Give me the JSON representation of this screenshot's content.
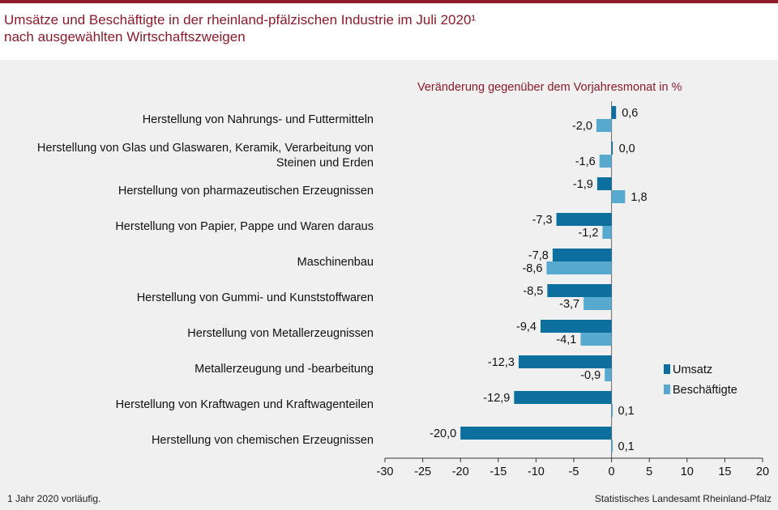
{
  "header": {
    "title_line1": "Umsätze und Beschäftigte in der rheinland-pfälzischen Industrie im Juli 2020¹",
    "title_line2": "nach ausgewählten Wirtschaftszweigen"
  },
  "footnote": "1 Jahr  2020 vorläufig.",
  "source": "Statistisches Landesamt Rheinland-Pfalz",
  "colors": {
    "umsatz": "#0d6f9e",
    "beschaeftigte": "#58a9cf",
    "title": "#8b1a2b"
  },
  "chart_data": {
    "type": "bar",
    "orientation": "horizontal",
    "subtitle": "Veränderung  gegenüber  dem Vorjahresmonat  in %",
    "categories": [
      [
        "Herstellung von Nahrungs- und Futtermitteln"
      ],
      [
        "Herstellung von Glas und Glaswaren, Keramik, Verarbeitung von",
        "Steinen und Erden"
      ],
      [
        "Herstellung von pharmazeutischen Erzeugnissen"
      ],
      [
        "Herstellung von Papier, Pappe und Waren daraus"
      ],
      [
        "Maschinenbau"
      ],
      [
        "Herstellung von Gummi- und Kunststoffwaren"
      ],
      [
        "Herstellung von Metallerzeugnissen"
      ],
      [
        "Metallerzeugung und -bearbeitung"
      ],
      [
        "Herstellung von Kraftwagen und Kraftwagenteilen"
      ],
      [
        "Herstellung von chemischen Erzeugnissen"
      ]
    ],
    "series": [
      {
        "name": "Umsatz",
        "values": [
          0.6,
          0.0,
          -1.9,
          -7.3,
          -7.8,
          -8.5,
          -9.4,
          -12.3,
          -12.9,
          -20.0
        ],
        "labels": [
          "0,6",
          "0,0",
          "-1,9",
          "-7,3",
          "-7,8",
          "-8,5",
          "-9,4",
          "-12,3",
          "-12,9",
          "-20,0"
        ]
      },
      {
        "name": "Beschäftigte",
        "values": [
          -2.0,
          -1.6,
          1.8,
          -1.2,
          -8.6,
          -3.7,
          -4.1,
          -0.9,
          0.1,
          0.1
        ],
        "labels": [
          "-2,0",
          "-1,6",
          "1,8",
          "-1,2",
          "-8,6",
          "-3,7",
          "-4,1",
          "-0,9",
          "0,1",
          "0,1"
        ]
      }
    ],
    "xlim": [
      -30,
      20
    ],
    "xticks": [
      -30,
      -25,
      -20,
      -15,
      -10,
      -5,
      0,
      5,
      10,
      15,
      20
    ],
    "legend_position": "right"
  }
}
